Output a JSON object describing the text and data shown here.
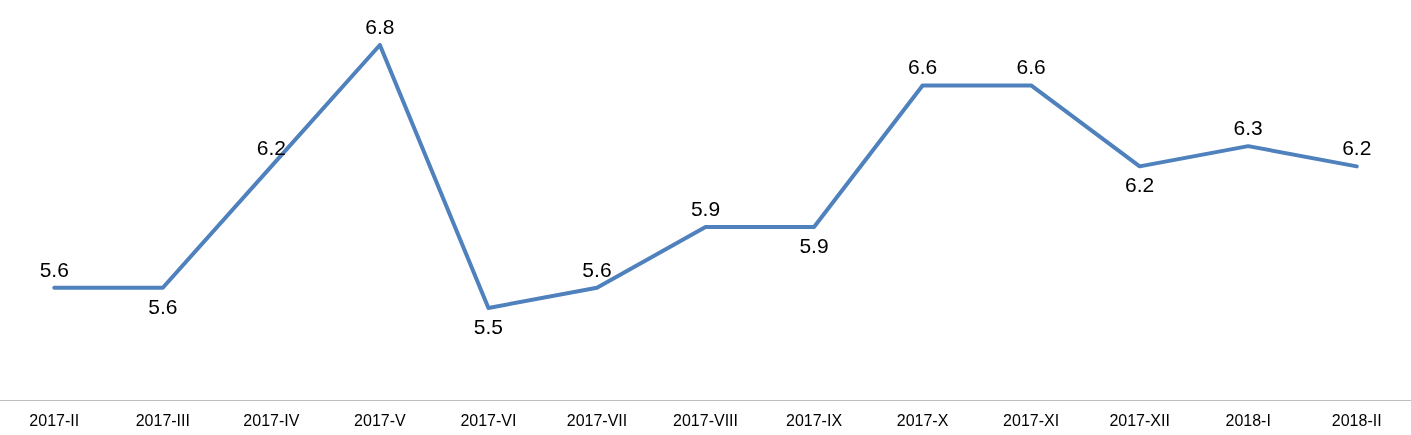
{
  "chart_data": {
    "type": "line",
    "categories": [
      "2017-II",
      "2017-III",
      "2017-IV",
      "2017-V",
      "2017-VI",
      "2017-VII",
      "2017-VIII",
      "2017-IX",
      "2017-X",
      "2017-XI",
      "2017-XII",
      "2018-I",
      "2018-II"
    ],
    "series": [
      {
        "color": "#4f81bd",
        "values": [
          5.6,
          5.6,
          6.2,
          6.8,
          5.5,
          5.6,
          5.9,
          5.9,
          6.6,
          6.6,
          6.2,
          6.3,
          6.2
        ]
      }
    ],
    "data_labels": true,
    "grid": false,
    "marker": "none",
    "line_style": "solid"
  }
}
